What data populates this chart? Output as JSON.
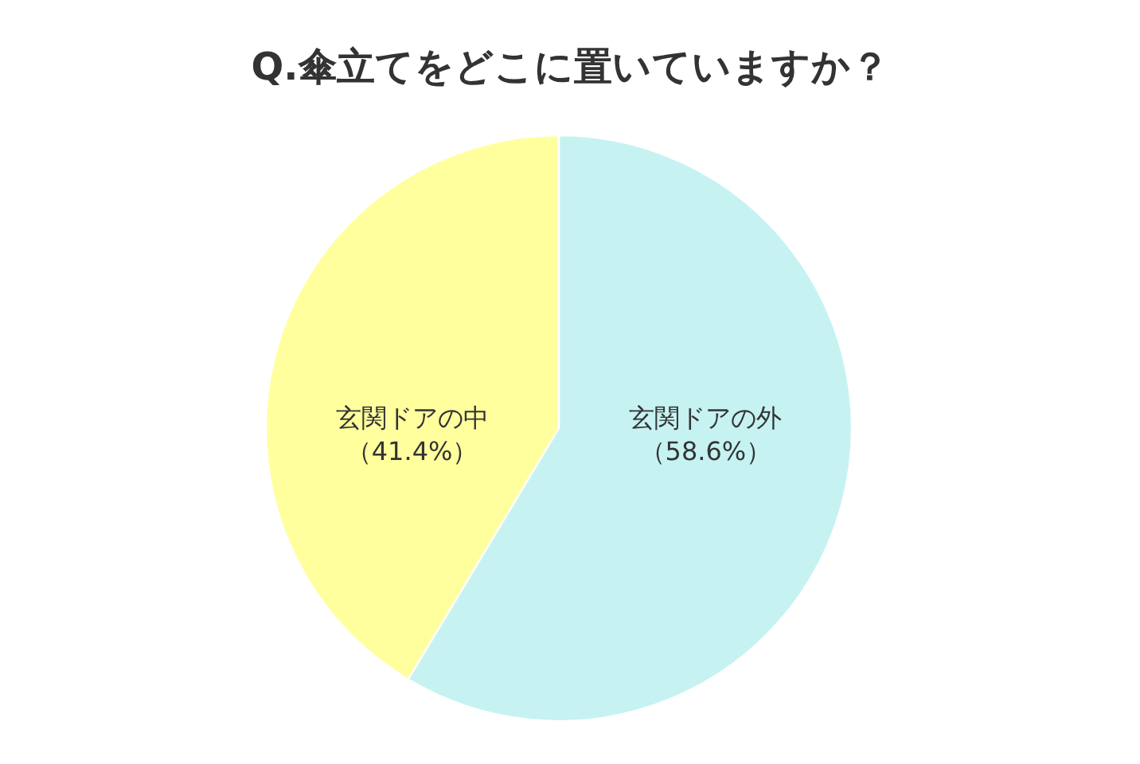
{
  "chart_data": {
    "type": "pie",
    "title": "Q.傘立てをどこに置いていますか？",
    "categories": [
      "玄関ドアの外",
      "玄関ドアの中"
    ],
    "values": [
      58.6,
      41.4
    ],
    "value_labels": [
      "（58.6%）",
      "（41.4%）"
    ],
    "colors": [
      "#c6f2f2",
      "#ffff9e"
    ]
  }
}
